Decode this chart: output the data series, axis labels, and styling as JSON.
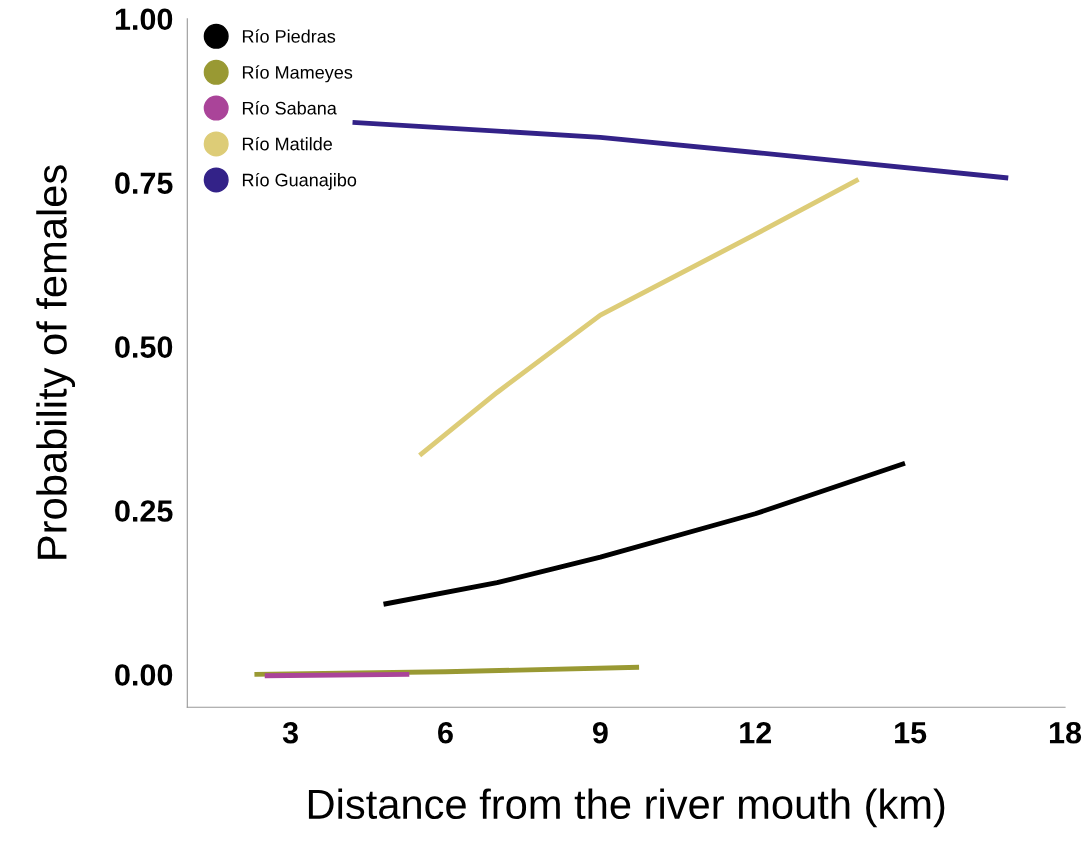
{
  "chart_data": {
    "type": "line",
    "xlabel": "Distance from the river mouth (km)",
    "ylabel": "Probability of females",
    "xlim": [
      1,
      18
    ],
    "ylim": [
      -0.05,
      1.0
    ],
    "xticks": [
      3,
      6,
      9,
      12,
      15,
      18
    ],
    "yticks": [
      {
        "value": 0,
        "label": "0.00"
      },
      {
        "value": 0.25,
        "label": "0.25"
      },
      {
        "value": 0.5,
        "label": "0.50"
      },
      {
        "value": 0.75,
        "label": "0.75"
      },
      {
        "value": 1,
        "label": "1.00"
      }
    ],
    "grid": false,
    "legend": "top left",
    "line_style": "solid",
    "series": [
      {
        "name": "Río Piedras",
        "color": "#000000",
        "x": [
          4.8,
          7,
          9,
          12,
          14.9
        ],
        "values": [
          0.107,
          0.14,
          0.179,
          0.245,
          0.322
        ]
      },
      {
        "name": "Río Mameyes",
        "color": "#999933",
        "x": [
          2.3,
          6,
          9.75
        ],
        "values": [
          0.0,
          0.004,
          0.011
        ]
      },
      {
        "name": "Río Sabana",
        "color": "#aa4499",
        "x": [
          2.5,
          5.3
        ],
        "values": [
          -0.002,
          0.0
        ]
      },
      {
        "name": "Río Matilde",
        "color": "#ddcc77",
        "x": [
          5.5,
          7,
          9,
          12,
          14
        ],
        "values": [
          0.334,
          0.43,
          0.548,
          0.671,
          0.755
        ]
      },
      {
        "name": "Río Guanajibo",
        "color": "#332288",
        "x": [
          4.2,
          9,
          12,
          16.9
        ],
        "values": [
          0.842,
          0.819,
          0.796,
          0.757
        ]
      }
    ]
  }
}
